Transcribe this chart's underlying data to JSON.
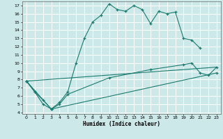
{
  "bg_color": "#cce8e8",
  "line_color": "#1a7a6e",
  "grid_color": "#ffffff",
  "xlim": [
    -0.5,
    23.5
  ],
  "ylim": [
    3.8,
    17.5
  ],
  "xticks": [
    0,
    1,
    2,
    3,
    4,
    5,
    6,
    7,
    8,
    9,
    10,
    11,
    12,
    13,
    14,
    15,
    16,
    17,
    18,
    19,
    20,
    21,
    22,
    23
  ],
  "yticks": [
    4,
    5,
    6,
    7,
    8,
    9,
    10,
    11,
    12,
    13,
    14,
    15,
    16,
    17
  ],
  "xlabel": "Humidex (Indice chaleur)",
  "line1": {
    "x": [
      0,
      1,
      2,
      3,
      4,
      5,
      6,
      7,
      8,
      9,
      10,
      11,
      12,
      13,
      14,
      15,
      16,
      17,
      18,
      19,
      20,
      21
    ],
    "y": [
      7.8,
      6.5,
      5.0,
      4.4,
      5.2,
      6.5,
      10.0,
      13.0,
      15.0,
      15.8,
      17.2,
      16.5,
      16.3,
      17.0,
      16.5,
      14.8,
      16.3,
      16.0,
      16.2,
      13.0,
      12.8,
      11.8
    ],
    "marker": true
  },
  "line2": {
    "x": [
      0,
      1,
      2,
      3,
      4,
      5,
      10,
      15,
      19,
      20,
      21,
      22,
      23
    ],
    "y": [
      7.8,
      6.5,
      5.5,
      4.4,
      5.0,
      6.2,
      8.2,
      9.2,
      9.8,
      10.0,
      8.8,
      8.5,
      9.5
    ],
    "marker": true
  },
  "line3": {
    "x": [
      0,
      23
    ],
    "y": [
      7.8,
      9.5
    ],
    "marker": false
  },
  "line4": {
    "x": [
      0,
      3,
      23
    ],
    "y": [
      7.8,
      4.4,
      8.8
    ],
    "marker": true
  }
}
